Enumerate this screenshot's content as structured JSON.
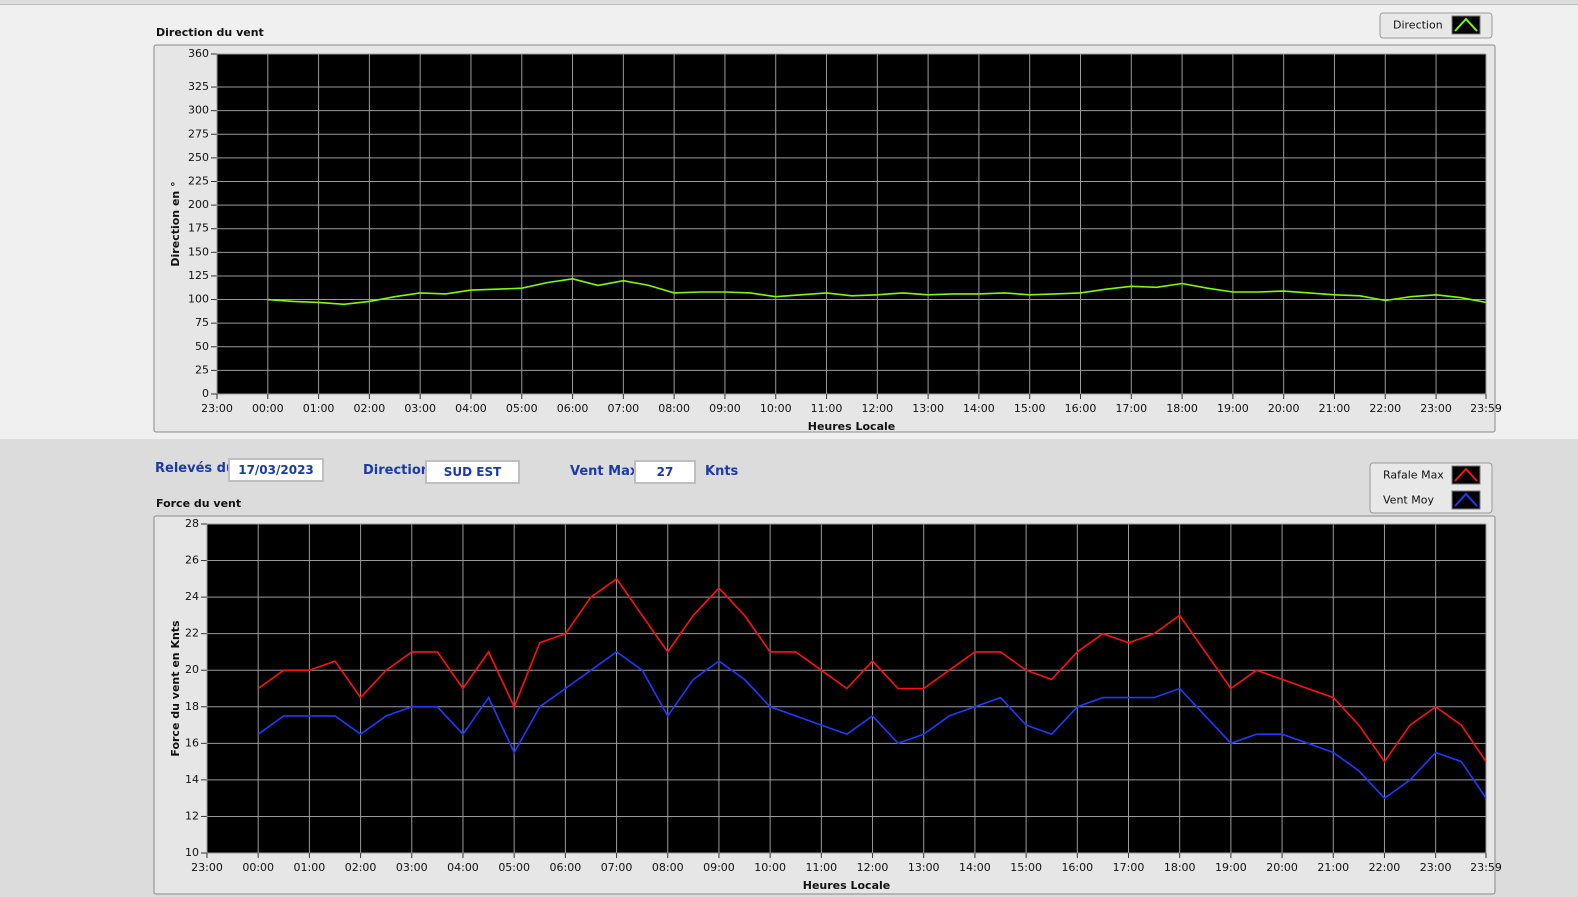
{
  "form": {
    "date_label": "Relevés du",
    "date": "17/03/2023",
    "direction_label": "Direction",
    "direction": "SUD EST",
    "vent_max_label": "Vent Max",
    "vent_max": 27,
    "unit": "Knts"
  },
  "chart_data": [
    {
      "type": "line",
      "title": "Direction du vent",
      "xlabel": "Heures Locale",
      "ylabel": "Direction en °",
      "x": [
        0,
        30,
        60,
        90,
        120,
        150,
        180,
        210,
        240,
        270,
        300,
        330,
        360,
        390,
        420,
        450,
        480,
        510,
        540,
        570,
        600,
        630,
        660,
        690,
        720,
        750,
        780,
        810,
        840,
        870,
        900,
        930,
        960,
        990,
        1020,
        1050,
        1080,
        1110,
        1140,
        1170,
        1200,
        1230,
        1260,
        1290,
        1320,
        1350,
        1380,
        1410,
        1439
      ],
      "series": [
        {
          "name": "Direction",
          "color": "#7cfc00",
          "values": [
            100,
            98,
            97,
            95,
            98,
            103,
            107,
            106,
            110,
            111,
            112,
            118,
            122,
            115,
            120,
            115,
            107,
            108,
            108,
            107,
            103,
            105,
            107,
            104,
            105,
            107,
            105,
            106,
            106,
            107,
            105,
            106,
            107,
            111,
            114,
            113,
            117,
            112,
            108,
            108,
            109,
            107,
            105,
            104,
            99,
            103,
            105,
            102,
            97
          ]
        }
      ],
      "xlim": [
        -60,
        1439
      ],
      "xticks": [
        {
          "value": -60,
          "label": "23:00"
        },
        {
          "value": 0,
          "label": "00:00"
        },
        {
          "value": 60,
          "label": "01:00"
        },
        {
          "value": 120,
          "label": "02:00"
        },
        {
          "value": 180,
          "label": "03:00"
        },
        {
          "value": 240,
          "label": "04:00"
        },
        {
          "value": 300,
          "label": "05:00"
        },
        {
          "value": 360,
          "label": "06:00"
        },
        {
          "value": 420,
          "label": "07:00"
        },
        {
          "value": 480,
          "label": "08:00"
        },
        {
          "value": 540,
          "label": "09:00"
        },
        {
          "value": 600,
          "label": "10:00"
        },
        {
          "value": 660,
          "label": "11:00"
        },
        {
          "value": 720,
          "label": "12:00"
        },
        {
          "value": 780,
          "label": "13:00"
        },
        {
          "value": 840,
          "label": "14:00"
        },
        {
          "value": 900,
          "label": "15:00"
        },
        {
          "value": 960,
          "label": "16:00"
        },
        {
          "value": 1020,
          "label": "17:00"
        },
        {
          "value": 1080,
          "label": "18:00"
        },
        {
          "value": 1140,
          "label": "19:00"
        },
        {
          "value": 1200,
          "label": "20:00"
        },
        {
          "value": 1260,
          "label": "21:00"
        },
        {
          "value": 1320,
          "label": "22:00"
        },
        {
          "value": 1380,
          "label": "23:00"
        },
        {
          "value": 1439,
          "label": "23:59"
        }
      ],
      "ylim": [
        0,
        360
      ],
      "yticks": [
        0,
        25,
        50,
        75,
        100,
        125,
        150,
        175,
        200,
        225,
        250,
        275,
        300,
        325,
        360
      ],
      "grid": true
    },
    {
      "type": "line",
      "title": "Force du vent",
      "xlabel": "Heures Locale",
      "ylabel": "Force du vent en Knts",
      "x": [
        0,
        30,
        60,
        90,
        120,
        150,
        180,
        210,
        240,
        270,
        300,
        330,
        360,
        390,
        420,
        450,
        480,
        510,
        540,
        570,
        600,
        630,
        660,
        690,
        720,
        750,
        780,
        810,
        840,
        870,
        900,
        930,
        960,
        990,
        1020,
        1050,
        1080,
        1110,
        1140,
        1170,
        1200,
        1230,
        1260,
        1290,
        1320,
        1350,
        1380,
        1410,
        1439
      ],
      "series": [
        {
          "name": "Rafale Max",
          "color": "#ff1010",
          "values": [
            19,
            20,
            20,
            20.5,
            18.5,
            20,
            21,
            21,
            19,
            21,
            18,
            21.5,
            22,
            24,
            25,
            23,
            21,
            23,
            24.5,
            23,
            21,
            21,
            20,
            19,
            20.5,
            19,
            19,
            20,
            21,
            21,
            20,
            19.5,
            21,
            22,
            21.5,
            22,
            23,
            21,
            19,
            20,
            19.5,
            19,
            18.5,
            17,
            15,
            17,
            18,
            17,
            15
          ]
        },
        {
          "name": "Vent Moy",
          "color": "#1a3cff",
          "values": [
            16.5,
            17.5,
            17.5,
            17.5,
            16.5,
            17.5,
            18,
            18,
            16.5,
            18.5,
            15.5,
            18,
            19,
            20,
            21,
            20,
            17.5,
            19.5,
            20.5,
            19.5,
            18,
            17.5,
            17,
            16.5,
            17.5,
            16,
            16.5,
            17.5,
            18,
            18.5,
            17,
            16.5,
            18,
            18.5,
            18.5,
            18.5,
            19,
            17.5,
            16,
            16.5,
            16.5,
            16,
            15.5,
            14.5,
            13,
            14,
            15.5,
            15,
            13
          ]
        }
      ],
      "xlim": [
        -60,
        1439
      ],
      "xticks": [
        {
          "value": -60,
          "label": "23:00"
        },
        {
          "value": 0,
          "label": "00:00"
        },
        {
          "value": 60,
          "label": "01:00"
        },
        {
          "value": 120,
          "label": "02:00"
        },
        {
          "value": 180,
          "label": "03:00"
        },
        {
          "value": 240,
          "label": "04:00"
        },
        {
          "value": 300,
          "label": "05:00"
        },
        {
          "value": 360,
          "label": "06:00"
        },
        {
          "value": 420,
          "label": "07:00"
        },
        {
          "value": 480,
          "label": "08:00"
        },
        {
          "value": 540,
          "label": "09:00"
        },
        {
          "value": 600,
          "label": "10:00"
        },
        {
          "value": 660,
          "label": "11:00"
        },
        {
          "value": 720,
          "label": "12:00"
        },
        {
          "value": 780,
          "label": "13:00"
        },
        {
          "value": 840,
          "label": "14:00"
        },
        {
          "value": 900,
          "label": "15:00"
        },
        {
          "value": 960,
          "label": "16:00"
        },
        {
          "value": 1020,
          "label": "17:00"
        },
        {
          "value": 1080,
          "label": "18:00"
        },
        {
          "value": 1140,
          "label": "19:00"
        },
        {
          "value": 1200,
          "label": "20:00"
        },
        {
          "value": 1260,
          "label": "21:00"
        },
        {
          "value": 1320,
          "label": "22:00"
        },
        {
          "value": 1380,
          "label": "23:00"
        },
        {
          "value": 1439,
          "label": "23:59"
        }
      ],
      "ylim": [
        10,
        28
      ],
      "yticks": [
        10,
        12,
        14,
        16,
        18,
        20,
        22,
        24,
        26,
        28
      ],
      "grid": true
    }
  ]
}
